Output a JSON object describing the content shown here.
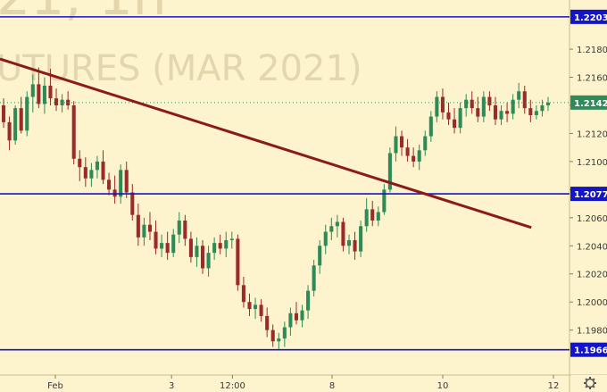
{
  "chart_data": {
    "type": "candlestick",
    "watermark": {
      "line1": "21, 1h",
      "line2": "UTURES (MAR 2021)"
    },
    "y_axis": {
      "ylim": [
        1.1948,
        1.2215
      ],
      "ticks": [
        "1.2180",
        "1.2160",
        "1.2140",
        "1.2120",
        "1.2100",
        "1.2080",
        "1.2060",
        "1.2040",
        "1.2020",
        "1.2000",
        "1.1980"
      ]
    },
    "x_axis": {
      "xlim": [
        0,
        100
      ],
      "ticks": [
        {
          "label": "Feb",
          "x": 10
        },
        {
          "label": "3",
          "x": 31
        },
        {
          "label": "12:00",
          "x": 42
        },
        {
          "label": "8",
          "x": 60
        },
        {
          "label": "10",
          "x": 80
        },
        {
          "label": "12",
          "x": 100
        }
      ]
    },
    "horizontal_lines": [
      {
        "value": 1.2203,
        "label": "1.2203",
        "color": "#1414c8"
      },
      {
        "value": 1.2077,
        "label": "1.2077",
        "color": "#1414c8"
      },
      {
        "value": 1.1966,
        "label": "1.1966",
        "color": "#1414c8"
      }
    ],
    "trend_line": {
      "x1": 0,
      "y1": 1.2173,
      "x2": 96,
      "y2": 1.2053,
      "color": "#8b1a1a"
    },
    "last_price": {
      "value": 1.2142,
      "label": "1.2142",
      "color": "#2e8b57"
    },
    "colors": {
      "up": "#2e8b57",
      "down": "#9b2a2a",
      "background": "#fdf3cd"
    },
    "candles": [
      [
        1.214,
        1.2145,
        1.2124,
        1.2128
      ],
      [
        1.2128,
        1.2132,
        1.2108,
        1.2115
      ],
      [
        1.2115,
        1.214,
        1.2112,
        1.2138
      ],
      [
        1.2138,
        1.2146,
        1.212,
        1.2122
      ],
      [
        1.2122,
        1.215,
        1.2118,
        1.2146
      ],
      [
        1.2146,
        1.2162,
        1.2135,
        1.2155
      ],
      [
        1.2155,
        1.2167,
        1.2138,
        1.2141
      ],
      [
        1.2141,
        1.216,
        1.2134,
        1.2154
      ],
      [
        1.2154,
        1.2166,
        1.214,
        1.2145
      ],
      [
        1.2145,
        1.2152,
        1.2136,
        1.214
      ],
      [
        1.214,
        1.2148,
        1.2135,
        1.2144
      ],
      [
        1.2144,
        1.215,
        1.2137,
        1.214
      ],
      [
        1.214,
        1.2143,
        1.2098,
        1.2102
      ],
      [
        1.2102,
        1.2108,
        1.2086,
        1.2096
      ],
      [
        1.2096,
        1.2103,
        1.2082,
        1.2088
      ],
      [
        1.2088,
        1.2099,
        1.2082,
        1.2094
      ],
      [
        1.2094,
        1.2104,
        1.2088,
        1.21
      ],
      [
        1.21,
        1.2108,
        1.2084,
        1.2087
      ],
      [
        1.2087,
        1.2092,
        1.2076,
        1.208
      ],
      [
        1.208,
        1.209,
        1.207,
        1.2075
      ],
      [
        1.2075,
        1.2098,
        1.207,
        1.2094
      ],
      [
        1.2094,
        1.21,
        1.2074,
        1.2078
      ],
      [
        1.2078,
        1.2084,
        1.2058,
        1.2062
      ],
      [
        1.2062,
        1.207,
        1.204,
        1.2046
      ],
      [
        1.2046,
        1.206,
        1.204,
        1.2055
      ],
      [
        1.2055,
        1.2064,
        1.2044,
        1.205
      ],
      [
        1.205,
        1.2058,
        1.2034,
        1.2038
      ],
      [
        1.2038,
        1.2048,
        1.2032,
        1.2042
      ],
      [
        1.2042,
        1.205,
        1.203,
        1.2035
      ],
      [
        1.2035,
        1.2052,
        1.2032,
        1.2048
      ],
      [
        1.2048,
        1.2064,
        1.2042,
        1.2058
      ],
      [
        1.2058,
        1.2062,
        1.204,
        1.2045
      ],
      [
        1.2045,
        1.205,
        1.2028,
        1.2032
      ],
      [
        1.2032,
        1.2046,
        1.2025,
        1.204
      ],
      [
        1.204,
        1.2044,
        1.202,
        1.2024
      ],
      [
        1.2024,
        1.204,
        1.2018,
        1.2035
      ],
      [
        1.2035,
        1.2046,
        1.203,
        1.2042
      ],
      [
        1.2042,
        1.2048,
        1.2034,
        1.2038
      ],
      [
        1.2038,
        1.205,
        1.2032,
        1.2044
      ],
      [
        1.2044,
        1.205,
        1.2038,
        1.2045
      ],
      [
        1.2045,
        1.2048,
        1.2008,
        1.2012
      ],
      [
        1.2012,
        1.2018,
        1.1996,
        1.2
      ],
      [
        1.2,
        1.2006,
        1.199,
        1.1995
      ],
      [
        1.1995,
        1.2003,
        1.1988,
        1.1998
      ],
      [
        1.1998,
        1.2002,
        1.1986,
        1.199
      ],
      [
        1.199,
        1.1996,
        1.1975,
        1.198
      ],
      [
        1.198,
        1.1984,
        1.1968,
        1.1972
      ],
      [
        1.1972,
        1.1978,
        1.1966,
        1.1974
      ],
      [
        1.1974,
        1.1986,
        1.1968,
        1.1982
      ],
      [
        1.1982,
        1.1996,
        1.1976,
        1.1992
      ],
      [
        1.1992,
        1.2,
        1.1984,
        1.1987
      ],
      [
        1.1987,
        1.1998,
        1.1982,
        1.1994
      ],
      [
        1.1994,
        1.2012,
        1.1988,
        1.2008
      ],
      [
        1.2008,
        1.203,
        1.2004,
        1.2026
      ],
      [
        1.2026,
        1.2044,
        1.202,
        1.204
      ],
      [
        1.204,
        1.2055,
        1.2034,
        1.205
      ],
      [
        1.205,
        1.206,
        1.2044,
        1.2054
      ],
      [
        1.2054,
        1.2062,
        1.2046,
        1.2057
      ],
      [
        1.2057,
        1.206,
        1.2036,
        1.204
      ],
      [
        1.204,
        1.2048,
        1.2034,
        1.2044
      ],
      [
        1.2044,
        1.205,
        1.203,
        1.2036
      ],
      [
        1.2036,
        1.2058,
        1.2032,
        1.2054
      ],
      [
        1.2054,
        1.2074,
        1.205,
        1.2066
      ],
      [
        1.2066,
        1.2072,
        1.2054,
        1.2058
      ],
      [
        1.2058,
        1.2068,
        1.2054,
        1.2064
      ],
      [
        1.2064,
        1.2084,
        1.2062,
        1.208
      ],
      [
        1.208,
        1.211,
        1.2078,
        1.2106
      ],
      [
        1.2106,
        1.2125,
        1.21,
        1.2118
      ],
      [
        1.2118,
        1.2122,
        1.2104,
        1.211
      ],
      [
        1.211,
        1.2116,
        1.21,
        1.2104
      ],
      [
        1.2104,
        1.211,
        1.2096,
        1.21
      ],
      [
        1.21,
        1.2112,
        1.2094,
        1.2108
      ],
      [
        1.2108,
        1.2122,
        1.2104,
        1.2118
      ],
      [
        1.2118,
        1.2136,
        1.2114,
        1.2132
      ],
      [
        1.2132,
        1.215,
        1.2128,
        1.2146
      ],
      [
        1.2146,
        1.2152,
        1.213,
        1.2135
      ],
      [
        1.2135,
        1.2142,
        1.2126,
        1.213
      ],
      [
        1.213,
        1.2138,
        1.212,
        1.2124
      ],
      [
        1.2124,
        1.2142,
        1.212,
        1.2138
      ],
      [
        1.2138,
        1.2148,
        1.2132,
        1.2144
      ],
      [
        1.2144,
        1.215,
        1.2134,
        1.2138
      ],
      [
        1.2138,
        1.2146,
        1.2128,
        1.2132
      ],
      [
        1.2132,
        1.215,
        1.2128,
        1.2146
      ],
      [
        1.2146,
        1.215,
        1.2136,
        1.214
      ],
      [
        1.214,
        1.2146,
        1.2126,
        1.213
      ],
      [
        1.213,
        1.214,
        1.2126,
        1.2136
      ],
      [
        1.2136,
        1.2142,
        1.2128,
        1.2134
      ],
      [
        1.2134,
        1.2148,
        1.213,
        1.2144
      ],
      [
        1.2144,
        1.2156,
        1.2138,
        1.215
      ],
      [
        1.215,
        1.2154,
        1.2134,
        1.2138
      ],
      [
        1.2138,
        1.2144,
        1.2128,
        1.2133
      ],
      [
        1.2133,
        1.214,
        1.213,
        1.2136
      ],
      [
        1.2136,
        1.2144,
        1.2132,
        1.214
      ],
      [
        1.214,
        1.2146,
        1.2136,
        1.2142
      ]
    ]
  }
}
